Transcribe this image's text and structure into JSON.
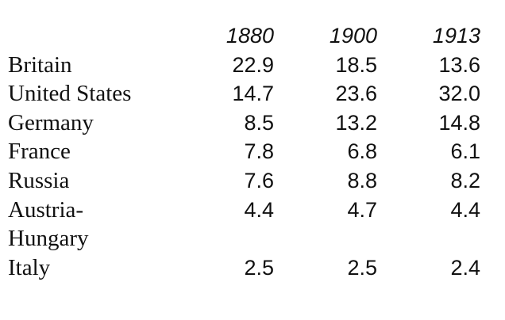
{
  "table": {
    "header": [
      "1880",
      "1900",
      "1913"
    ],
    "rows": [
      [
        "Britain",
        "22.9",
        "18.5",
        "13.6"
      ],
      [
        "United States",
        "14.7",
        "23.6",
        "32.0"
      ],
      [
        "Germany",
        "8.5",
        "13.2",
        "14.8"
      ],
      [
        "France",
        "7.8",
        "6.8",
        "6.1"
      ],
      [
        "Russia",
        "7.6",
        "8.8",
        "8.2"
      ],
      [
        "Austria-Hungary",
        "4.4",
        "4.7",
        "4.4"
      ],
      [
        "Italy",
        "2.5",
        "2.5",
        "2.4"
      ]
    ]
  }
}
